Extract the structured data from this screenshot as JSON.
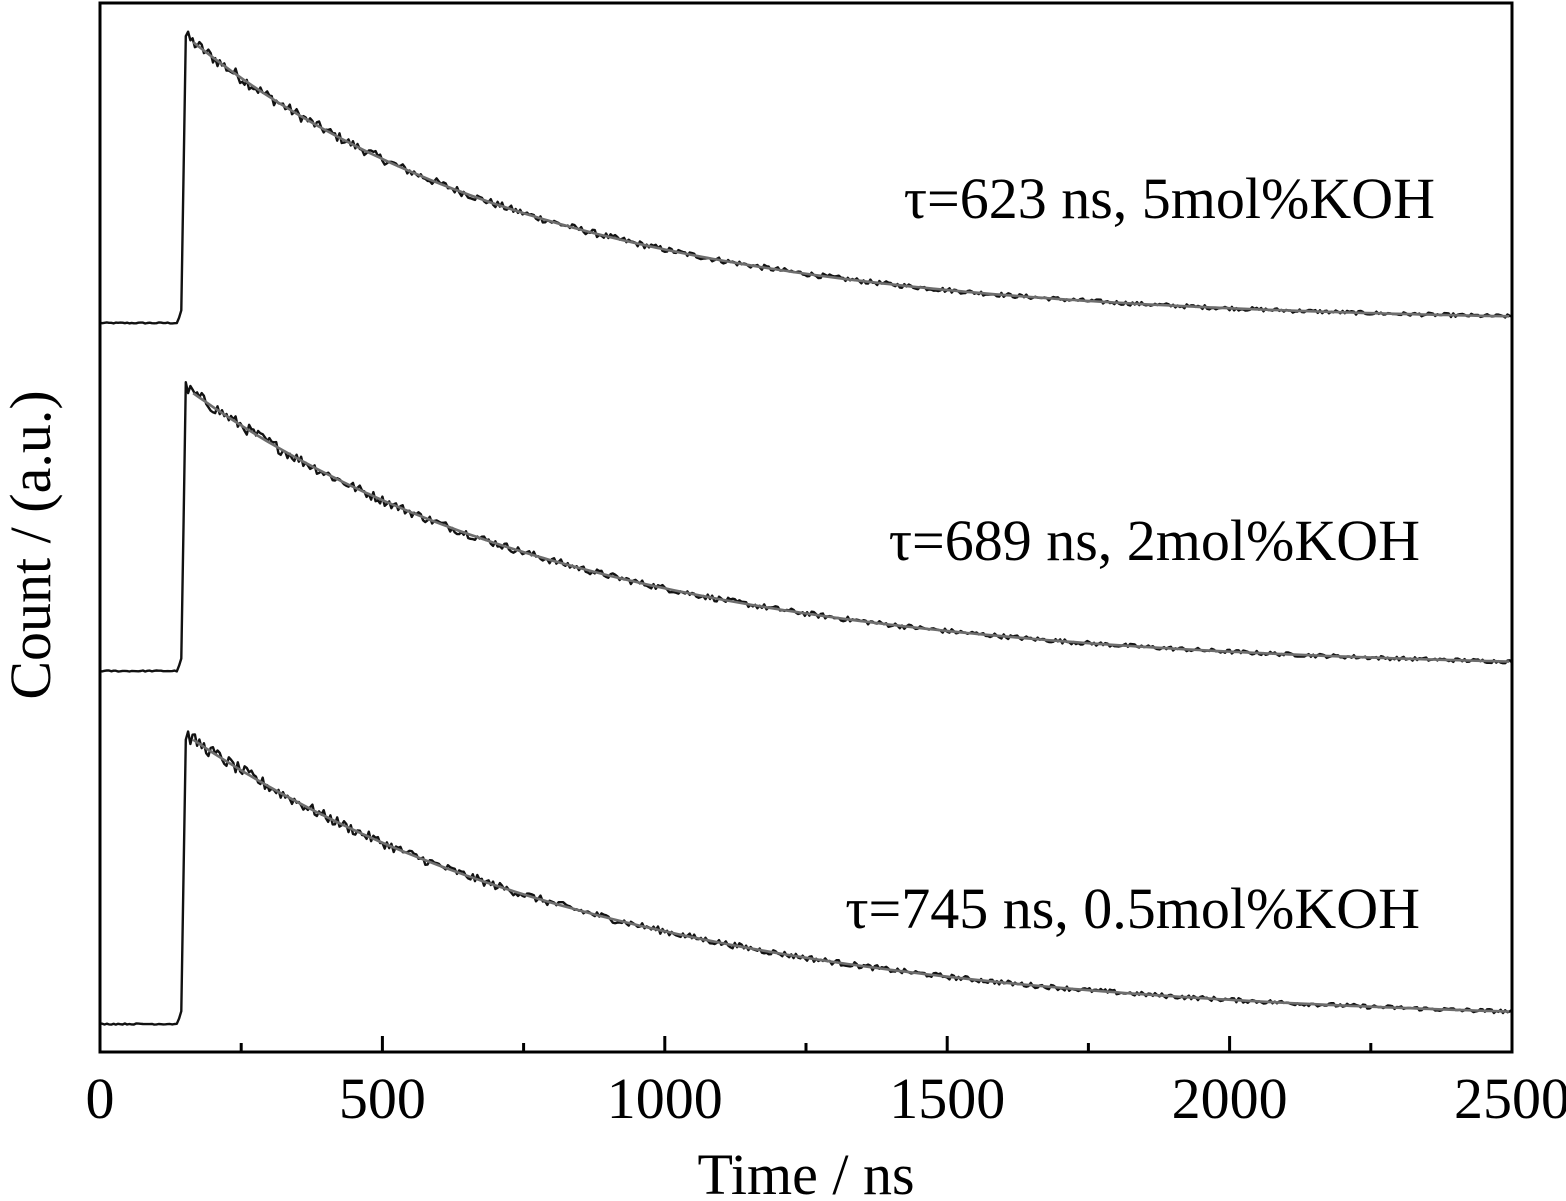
{
  "chart_data": {
    "type": "line",
    "xlabel": "Time / ns",
    "ylabel": "Count / (a.u.)",
    "xlim": [
      0,
      2500
    ],
    "x_ticks": [
      0,
      500,
      1000,
      1500,
      2000,
      2500
    ],
    "x_tick_labels": [
      "0",
      "500",
      "1000",
      "1500",
      "2000",
      "2500"
    ],
    "x_minor_ticks": [
      250,
      750,
      1250,
      1750,
      2250
    ],
    "y_ticks": [],
    "grid": false,
    "legend": "none",
    "offset_stacked": true,
    "colors": {
      "data": "#111111",
      "fit": "#6e6e6e"
    },
    "series": [
      {
        "annotation": "τ=623 ns, 5mol%KOH",
        "tau_ns": 623,
        "koh_mol_percent": 5,
        "baseline": 0,
        "rise_ns": 145,
        "peak": 1.0,
        "tail_end": 0.03,
        "noise": 0.035
      },
      {
        "annotation": "τ=689 ns, 2mol%KOH",
        "tau_ns": 689,
        "koh_mol_percent": 2,
        "baseline": 0,
        "rise_ns": 145,
        "peak": 1.0,
        "tail_end": 0.03,
        "noise": 0.035
      },
      {
        "annotation": "τ=745 ns, 0.5mol%KOH",
        "tau_ns": 745,
        "koh_mol_percent": 0.5,
        "baseline": 0,
        "rise_ns": 145,
        "peak": 1.0,
        "tail_end": 0.03,
        "noise": 0.035
      }
    ]
  }
}
